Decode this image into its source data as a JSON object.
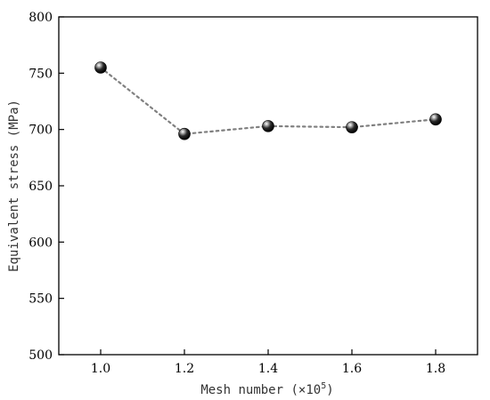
{
  "chart_data": {
    "type": "line",
    "x": [
      1.0,
      1.2,
      1.4,
      1.6,
      1.8
    ],
    "series": [
      {
        "values": [
          755,
          696,
          703,
          702,
          709
        ]
      }
    ],
    "xlim": [
      0.9,
      1.9
    ],
    "ylim": [
      500,
      800
    ],
    "xticks": [
      "1.0",
      "1.2",
      "1.4",
      "1.6",
      "1.8"
    ],
    "yticks": [
      "500",
      "550",
      "600",
      "650",
      "700",
      "750",
      "800"
    ],
    "xlabel": "Mesh number (×10",
    "xlabel_sup": "5",
    "xlabel_end": ")",
    "ylabel": "Equivalent stress (MPa)",
    "line_style": "dotted",
    "line_color": "#808080",
    "marker": "sphere",
    "marker_color": "#000000",
    "grid": false
  }
}
